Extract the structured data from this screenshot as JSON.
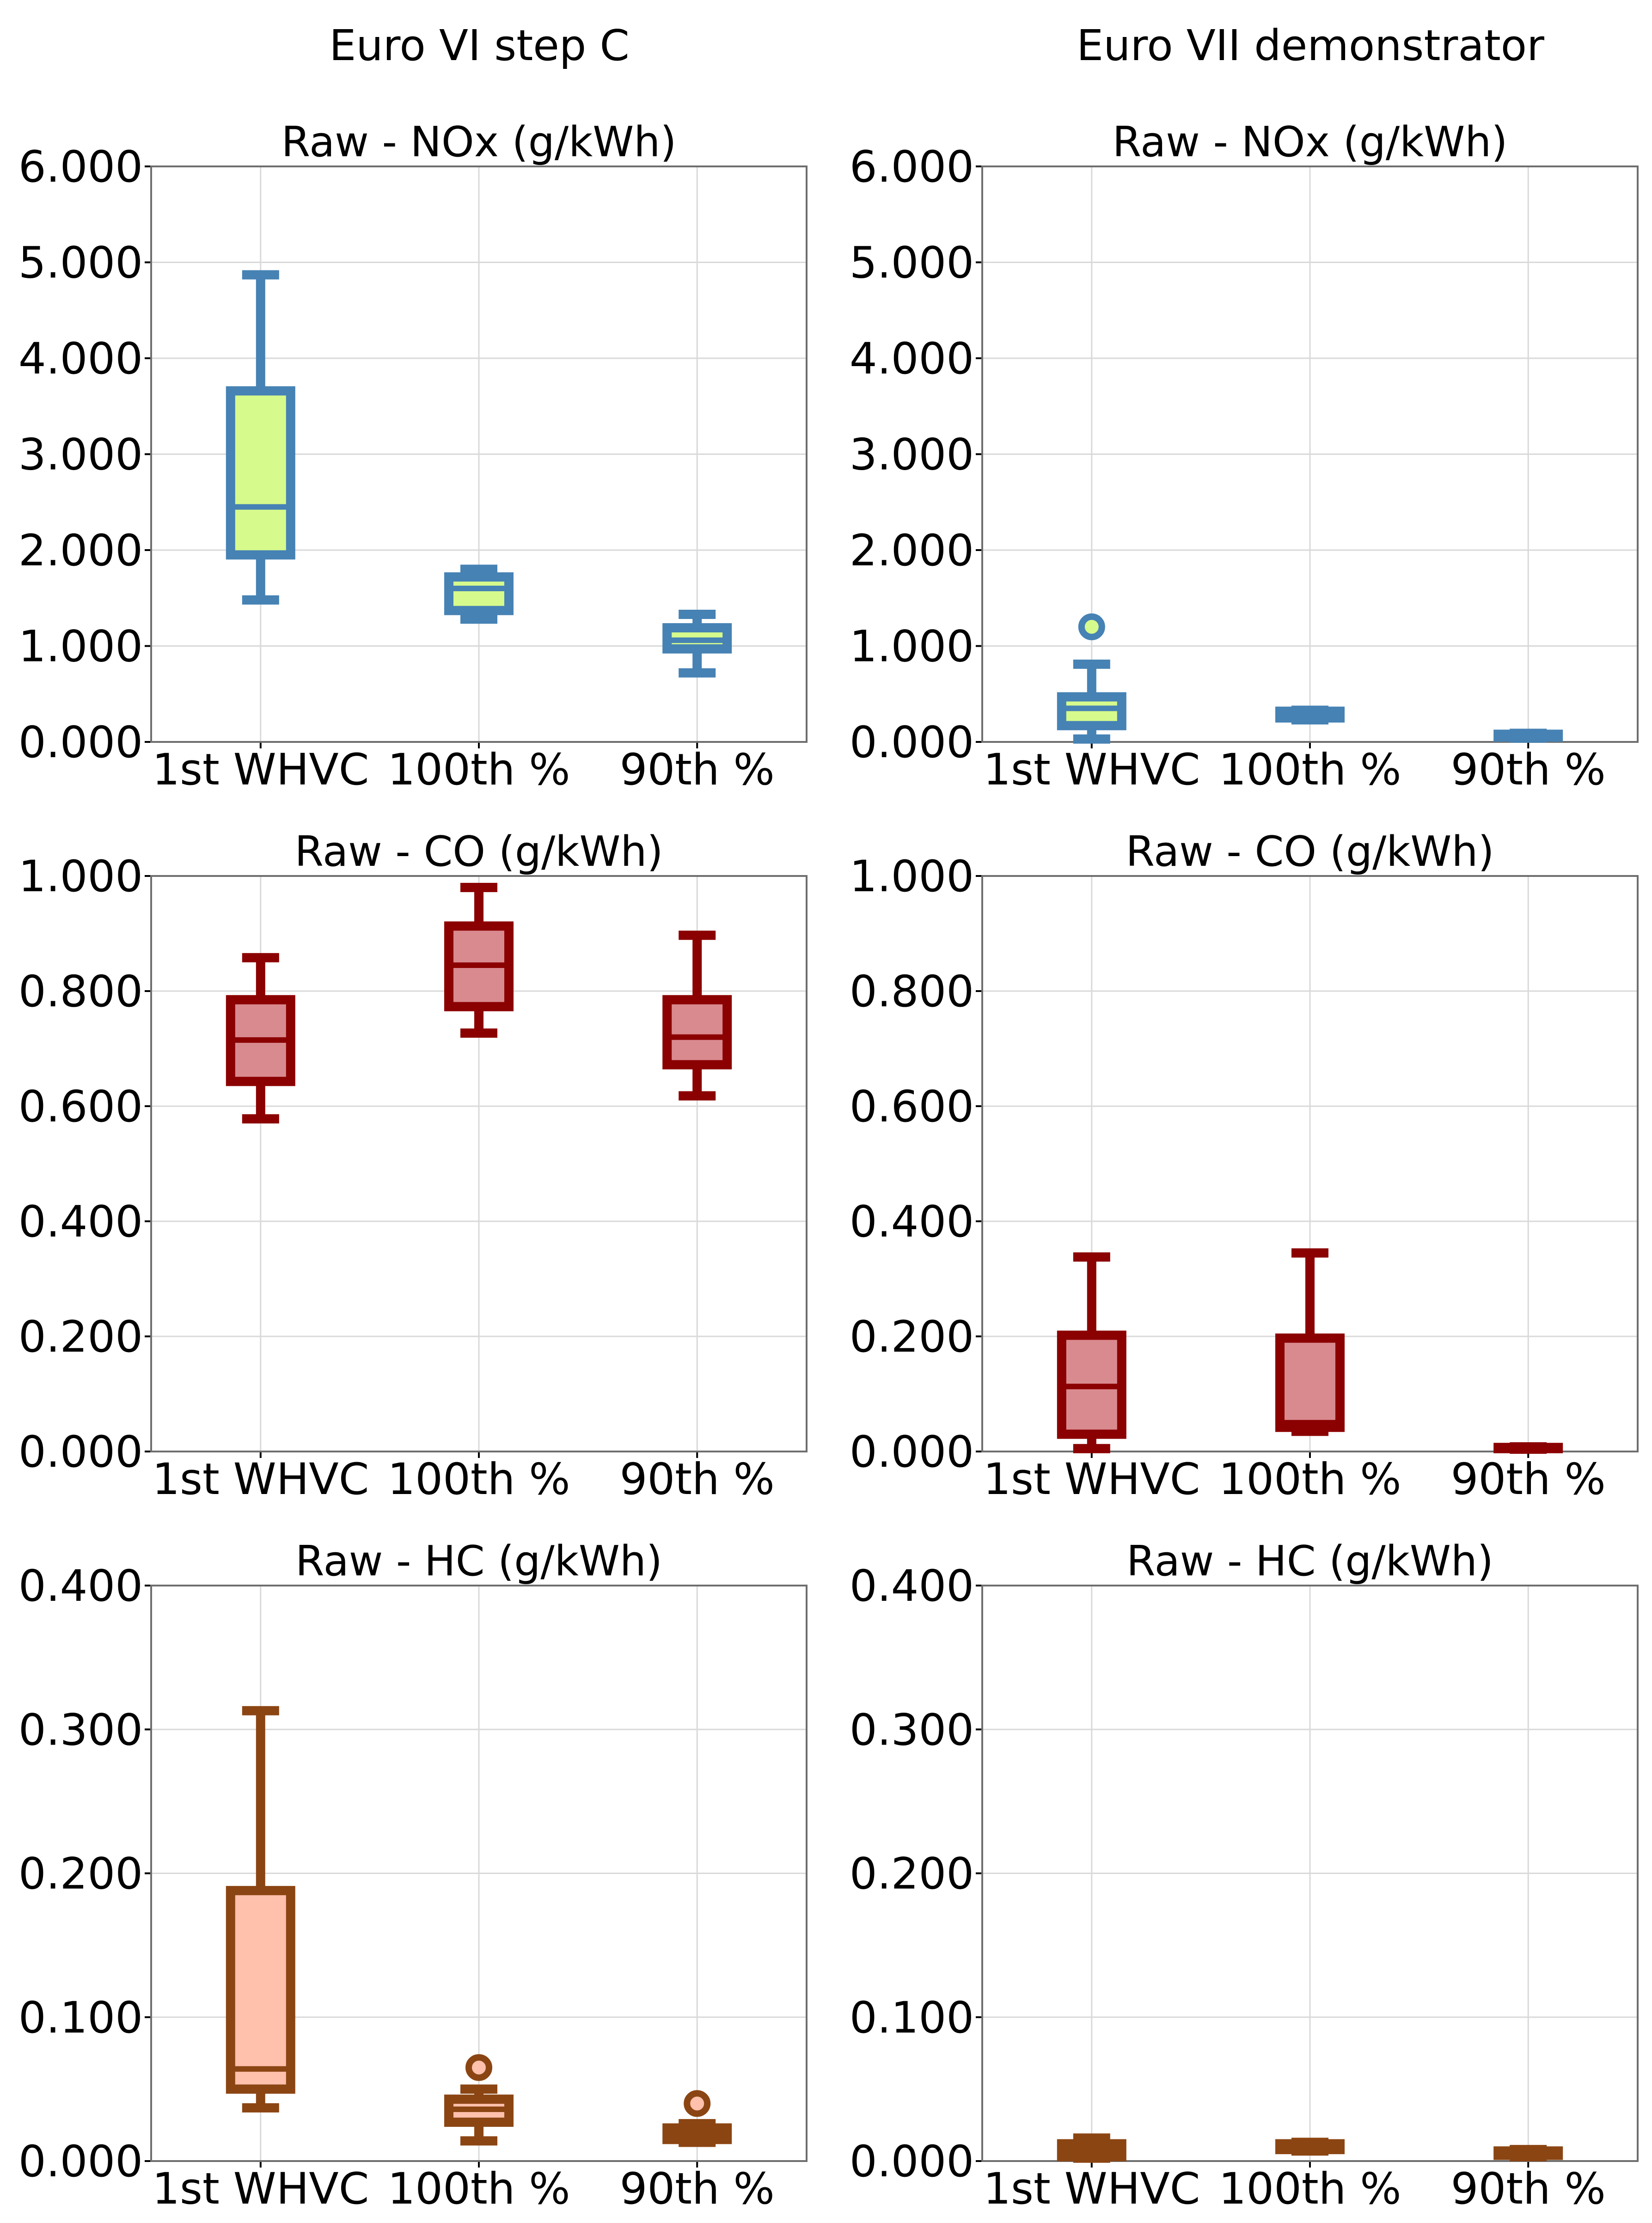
{
  "column_titles": [
    "Euro VI step C",
    "Euro VII demonstrator"
  ],
  "colors": {
    "nox_line": "#4682B4",
    "nox_fill": "#D6FA8C",
    "co_line": "#8B0000",
    "co_fill": "#D98A8F",
    "hc_line": "#8B4513",
    "hc_fill": "#FFC0AC"
  },
  "chart_data": [
    {
      "type": "box",
      "title": "Raw - NOx (g/kWh)",
      "column": "Euro VI step C",
      "categories": [
        "1st WHVC",
        "100th %",
        "90th %"
      ],
      "yticks": [
        "0.000",
        "1.000",
        "2.000",
        "3.000",
        "4.000",
        "5.000",
        "6.000"
      ],
      "ylim": [
        0,
        6
      ],
      "line_color": "#4682B4",
      "fill_color": "#D6FA8C",
      "boxes": [
        {
          "whislo": 1.48,
          "q1": 1.95,
          "med": 2.45,
          "q3": 3.66,
          "whishi": 4.87,
          "fliers": []
        },
        {
          "whislo": 1.28,
          "q1": 1.37,
          "med": 1.6,
          "q3": 1.72,
          "whishi": 1.8,
          "fliers": []
        },
        {
          "whislo": 0.72,
          "q1": 0.97,
          "med": 1.06,
          "q3": 1.19,
          "whishi": 1.33,
          "fliers": []
        }
      ]
    },
    {
      "type": "box",
      "title": "Raw - NOx (g/kWh)",
      "column": "Euro VII demonstrator",
      "categories": [
        "1st WHVC",
        "100th %",
        "90th %"
      ],
      "yticks": [
        "0.000",
        "1.000",
        "2.000",
        "3.000",
        "4.000",
        "5.000",
        "6.000"
      ],
      "ylim": [
        0,
        6
      ],
      "line_color": "#4682B4",
      "fill_color": "#D6FA8C",
      "boxes": [
        {
          "whislo": 0.03,
          "q1": 0.17,
          "med": 0.35,
          "q3": 0.47,
          "whishi": 0.81,
          "fliers": [
            1.2
          ]
        },
        {
          "whislo": 0.23,
          "q1": 0.25,
          "med": 0.29,
          "q3": 0.32,
          "whishi": 0.33,
          "fliers": []
        },
        {
          "whislo": 0.04,
          "q1": 0.05,
          "med": 0.06,
          "q3": 0.08,
          "whishi": 0.09,
          "fliers": []
        }
      ]
    },
    {
      "type": "box",
      "title": "Raw - CO (g/kWh)",
      "column": "Euro VI step C",
      "categories": [
        "1st WHVC",
        "100th %",
        "90th %"
      ],
      "yticks": [
        "0.000",
        "0.200",
        "0.400",
        "0.600",
        "0.800",
        "1.000"
      ],
      "ylim": [
        0,
        1
      ],
      "line_color": "#8B0000",
      "fill_color": "#D98A8F",
      "boxes": [
        {
          "whislo": 0.578,
          "q1": 0.643,
          "med": 0.715,
          "q3": 0.785,
          "whishi": 0.858,
          "fliers": []
        },
        {
          "whislo": 0.727,
          "q1": 0.773,
          "med": 0.845,
          "q3": 0.913,
          "whishi": 0.98,
          "fliers": []
        },
        {
          "whislo": 0.618,
          "q1": 0.672,
          "med": 0.72,
          "q3": 0.785,
          "whishi": 0.897,
          "fliers": []
        }
      ]
    },
    {
      "type": "box",
      "title": "Raw - CO (g/kWh)",
      "column": "Euro VII demonstrator",
      "categories": [
        "1st WHVC",
        "100th %",
        "90th %"
      ],
      "yticks": [
        "0.000",
        "0.200",
        "0.400",
        "0.600",
        "0.800",
        "1.000"
      ],
      "ylim": [
        0,
        1
      ],
      "line_color": "#8B0000",
      "fill_color": "#D98A8F",
      "boxes": [
        {
          "whislo": 0.005,
          "q1": 0.03,
          "med": 0.113,
          "q3": 0.202,
          "whishi": 0.338,
          "fliers": []
        },
        {
          "whislo": 0.035,
          "q1": 0.042,
          "med": 0.05,
          "q3": 0.197,
          "whishi": 0.345,
          "fliers": []
        },
        {
          "whislo": 0.004,
          "q1": 0.005,
          "med": 0.006,
          "q3": 0.007,
          "whishi": 0.008,
          "fliers": []
        }
      ]
    },
    {
      "type": "box",
      "title": "Raw - HC (g/kWh)",
      "column": "Euro VI step C",
      "categories": [
        "1st WHVC",
        "100th %",
        "90th %"
      ],
      "yticks": [
        "0.000",
        "0.100",
        "0.200",
        "0.300",
        "0.400"
      ],
      "ylim": [
        0,
        0.4
      ],
      "line_color": "#8B4513",
      "fill_color": "#FFC0AC",
      "boxes": [
        {
          "whislo": 0.037,
          "q1": 0.05,
          "med": 0.064,
          "q3": 0.188,
          "whishi": 0.313,
          "fliers": []
        },
        {
          "whislo": 0.014,
          "q1": 0.027,
          "med": 0.036,
          "q3": 0.043,
          "whishi": 0.05,
          "fliers": [
            0.065
          ]
        },
        {
          "whislo": 0.013,
          "q1": 0.015,
          "med": 0.019,
          "q3": 0.023,
          "whishi": 0.026,
          "fliers": [
            0.04
          ]
        }
      ]
    },
    {
      "type": "box",
      "title": "Raw - HC (g/kWh)",
      "column": "Euro VII demonstrator",
      "categories": [
        "1st WHVC",
        "100th %",
        "90th %"
      ],
      "yticks": [
        "0.000",
        "0.100",
        "0.200",
        "0.300",
        "0.400"
      ],
      "ylim": [
        0,
        0.4
      ],
      "line_color": "#8B4513",
      "fill_color": "#FFC0AC",
      "boxes": [
        {
          "whislo": 0.002,
          "q1": 0.003,
          "med": 0.008,
          "q3": 0.012,
          "whishi": 0.016,
          "fliers": []
        },
        {
          "whislo": 0.007,
          "q1": 0.008,
          "med": 0.01,
          "q3": 0.012,
          "whishi": 0.013,
          "fliers": []
        },
        {
          "whislo": 0.003,
          "q1": 0.004,
          "med": 0.005,
          "q3": 0.007,
          "whishi": 0.008,
          "fliers": []
        }
      ]
    }
  ]
}
